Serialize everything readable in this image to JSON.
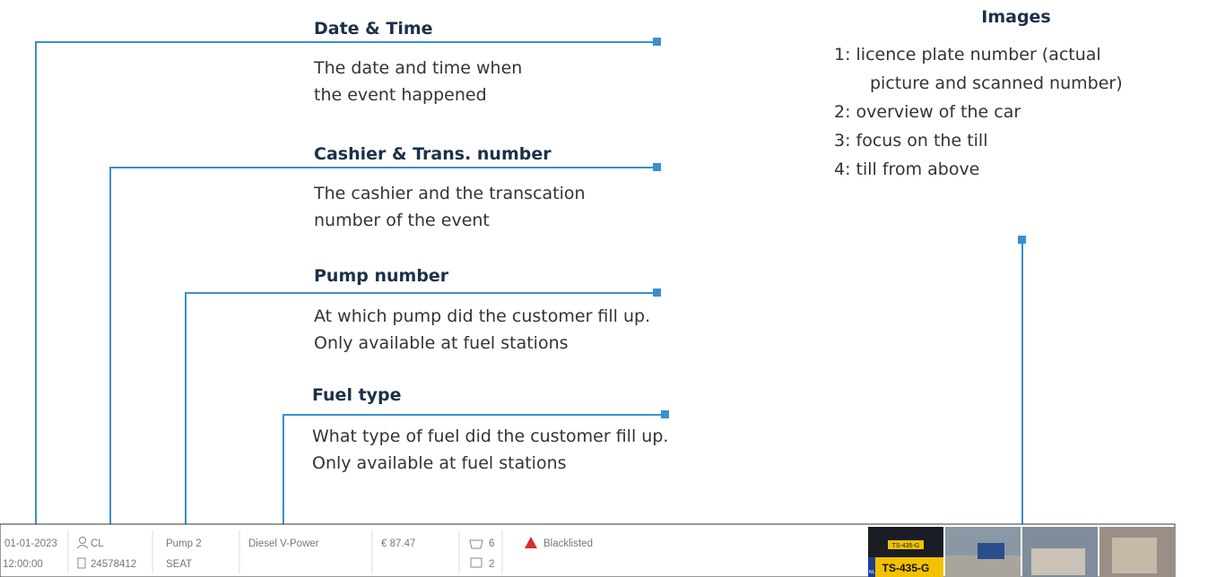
{
  "annotations": [
    {
      "title": "Date & Time",
      "lines": [
        "The date and time when",
        "the event happened"
      ]
    },
    {
      "title": "Cashier & Trans. number",
      "lines": [
        "The cashier and the transcation",
        "number of the event"
      ]
    },
    {
      "title": "Pump number",
      "lines": [
        "At which pump did the customer fill up.",
        "Only available at fuel stations"
      ]
    },
    {
      "title": "Fuel type",
      "lines": [
        "What type of fuel did the customer fill up.",
        "Only available at fuel stations"
      ]
    }
  ],
  "images": {
    "title": "Images",
    "lines": [
      "1: licence plate number (actual",
      "picture and scanned number)",
      "2: overview of the car",
      "3: focus on the till",
      "4: till from above"
    ]
  },
  "event_row": {
    "date": "01-01-2023",
    "time": "12:00:00",
    "cashier": "CL",
    "transaction": "24578412",
    "pump": "Pump 2",
    "car": "SEAT",
    "fuel": "Diesel V-Power",
    "amount": "€ 87.47",
    "articles": "6",
    "receipts": "2",
    "status": "Blacklisted"
  },
  "thumbnail": {
    "plate_top": "TS-435-G",
    "plate": "TS-435-G",
    "country": "NL"
  }
}
